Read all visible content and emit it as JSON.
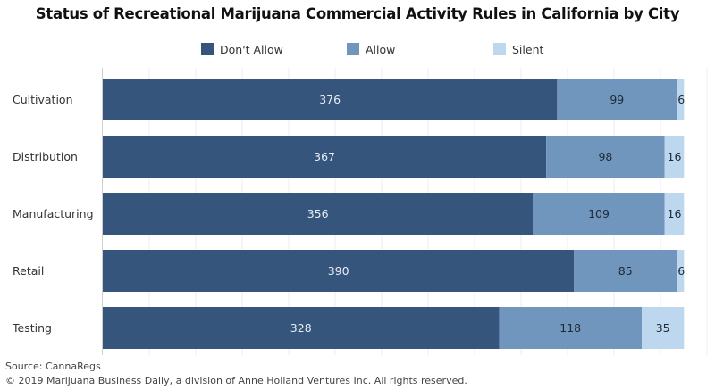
{
  "chart_data": {
    "type": "bar",
    "orientation": "horizontal",
    "stacked": true,
    "title": "Status of Recreational Marijuana Commercial Activity Rules in California by City",
    "xlabel": "",
    "ylabel": "",
    "categories": [
      "Cultivation",
      "Distribution",
      "Manufacturing",
      "Retail",
      "Testing"
    ],
    "series": [
      {
        "name": "Don't Allow",
        "color": "#35557d",
        "label_color": "#e8edf3",
        "values": [
          376,
          367,
          356,
          390,
          328
        ]
      },
      {
        "name": "Allow",
        "color": "#7096bd",
        "label_color": "#1f2a36",
        "values": [
          99,
          98,
          109,
          85,
          118
        ]
      },
      {
        "name": "Silent",
        "color": "#bdd7ee",
        "label_color": "#1f2a36",
        "values": [
          6,
          16,
          16,
          6,
          35
        ]
      }
    ],
    "xlim": [
      0,
      500
    ],
    "grid": true,
    "legend_position": "top-center",
    "data_labels": true
  },
  "footer": {
    "source": "Source: CannaRegs",
    "copyright": "© 2019 Marijuana Business Daily, a division of Anne Holland Ventures Inc. All rights reserved."
  }
}
